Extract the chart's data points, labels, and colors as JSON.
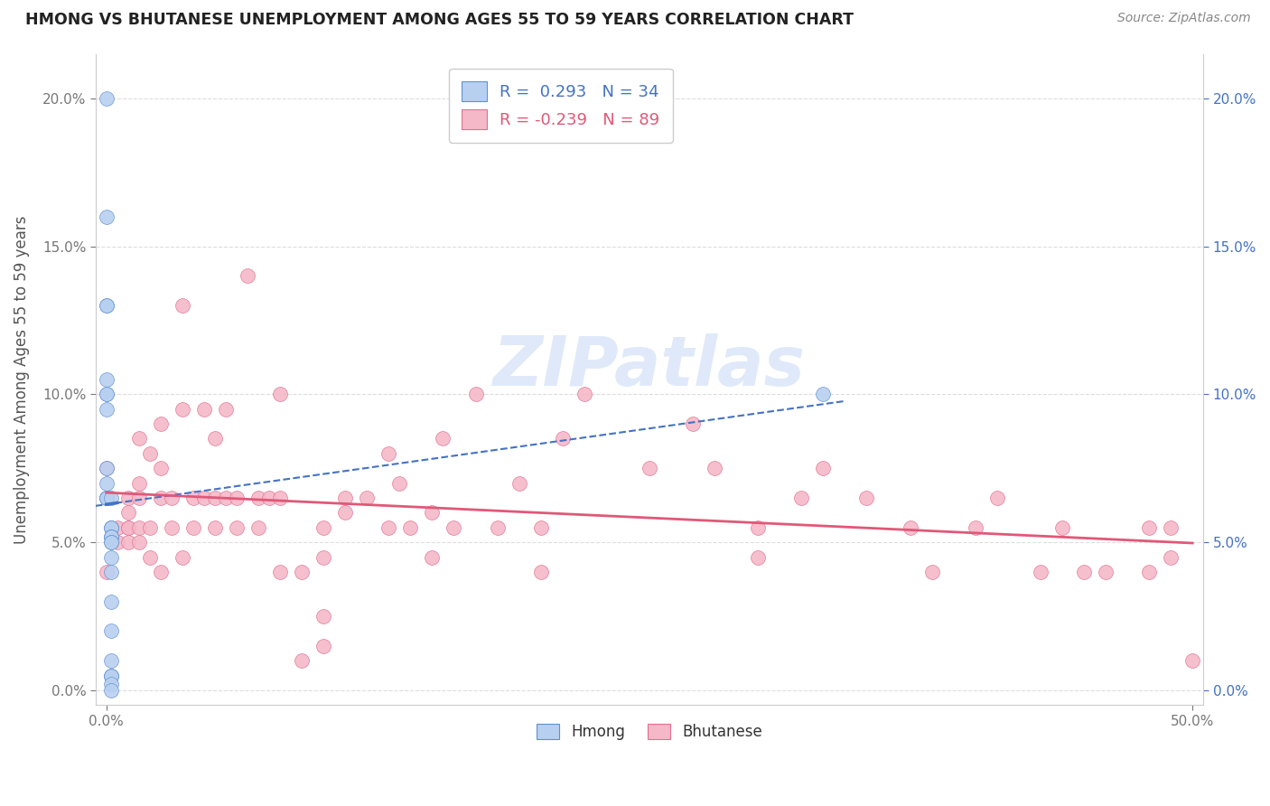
{
  "title": "HMONG VS BHUTANESE UNEMPLOYMENT AMONG AGES 55 TO 59 YEARS CORRELATION CHART",
  "source": "Source: ZipAtlas.com",
  "ylabel": "Unemployment Among Ages 55 to 59 years",
  "watermark": "ZIPatlas",
  "hmong_R": 0.293,
  "hmong_N": 34,
  "bhutanese_R": -0.239,
  "bhutanese_N": 89,
  "hmong_color": "#b8d0f0",
  "hmong_edge_color": "#6090d0",
  "hmong_line_color": "#4472c4",
  "bhutanese_color": "#f5b8c8",
  "bhutanese_edge_color": "#e07090",
  "bhutanese_line_color": "#e05878",
  "xlim": [
    -0.005,
    0.505
  ],
  "ylim": [
    -0.005,
    0.215
  ],
  "xticks": [
    0.0,
    0.5
  ],
  "xtick_labels": [
    "0.0%",
    "50.0%"
  ],
  "yticks": [
    0.0,
    0.05,
    0.1,
    0.15,
    0.2
  ],
  "ytick_labels": [
    "0.0%",
    "5.0%",
    "10.0%",
    "15.0%",
    "20.0%"
  ],
  "background_color": "#ffffff",
  "grid_color": "#dddddd",
  "hmong_x": [
    0.0,
    0.0,
    0.0,
    0.0,
    0.0,
    0.0,
    0.0,
    0.0,
    0.0,
    0.0,
    0.0,
    0.0,
    0.0,
    0.0,
    0.002,
    0.002,
    0.002,
    0.002,
    0.002,
    0.002,
    0.002,
    0.002,
    0.002,
    0.002,
    0.002,
    0.002,
    0.002,
    0.002,
    0.002,
    0.002,
    0.002,
    0.002,
    0.002,
    0.33
  ],
  "hmong_y": [
    0.2,
    0.16,
    0.13,
    0.13,
    0.105,
    0.1,
    0.1,
    0.095,
    0.075,
    0.07,
    0.065,
    0.065,
    0.065,
    0.065,
    0.065,
    0.055,
    0.055,
    0.055,
    0.052,
    0.052,
    0.052,
    0.05,
    0.05,
    0.045,
    0.04,
    0.03,
    0.02,
    0.01,
    0.005,
    0.005,
    0.005,
    0.002,
    0.0,
    0.1
  ],
  "bhutanese_x": [
    0.0,
    0.0,
    0.005,
    0.005,
    0.01,
    0.01,
    0.01,
    0.01,
    0.01,
    0.015,
    0.015,
    0.015,
    0.015,
    0.015,
    0.02,
    0.02,
    0.02,
    0.025,
    0.025,
    0.025,
    0.025,
    0.03,
    0.03,
    0.035,
    0.035,
    0.035,
    0.04,
    0.04,
    0.045,
    0.045,
    0.05,
    0.05,
    0.05,
    0.055,
    0.055,
    0.06,
    0.06,
    0.065,
    0.07,
    0.07,
    0.075,
    0.08,
    0.08,
    0.08,
    0.09,
    0.09,
    0.1,
    0.1,
    0.1,
    0.1,
    0.11,
    0.11,
    0.12,
    0.13,
    0.13,
    0.135,
    0.14,
    0.15,
    0.15,
    0.155,
    0.16,
    0.17,
    0.18,
    0.19,
    0.2,
    0.2,
    0.21,
    0.22,
    0.25,
    0.27,
    0.28,
    0.3,
    0.3,
    0.32,
    0.33,
    0.35,
    0.37,
    0.38,
    0.4,
    0.41,
    0.43,
    0.44,
    0.45,
    0.46,
    0.48,
    0.48,
    0.49,
    0.49,
    0.5
  ],
  "bhutanese_y": [
    0.075,
    0.04,
    0.055,
    0.05,
    0.065,
    0.06,
    0.055,
    0.055,
    0.05,
    0.085,
    0.07,
    0.065,
    0.055,
    0.05,
    0.08,
    0.055,
    0.045,
    0.09,
    0.075,
    0.065,
    0.04,
    0.065,
    0.055,
    0.13,
    0.095,
    0.045,
    0.065,
    0.055,
    0.095,
    0.065,
    0.085,
    0.065,
    0.055,
    0.095,
    0.065,
    0.065,
    0.055,
    0.14,
    0.065,
    0.055,
    0.065,
    0.1,
    0.065,
    0.04,
    0.04,
    0.01,
    0.055,
    0.045,
    0.025,
    0.015,
    0.065,
    0.06,
    0.065,
    0.08,
    0.055,
    0.07,
    0.055,
    0.06,
    0.045,
    0.085,
    0.055,
    0.1,
    0.055,
    0.07,
    0.055,
    0.04,
    0.085,
    0.1,
    0.075,
    0.09,
    0.075,
    0.055,
    0.045,
    0.065,
    0.075,
    0.065,
    0.055,
    0.04,
    0.055,
    0.065,
    0.04,
    0.055,
    0.04,
    0.04,
    0.055,
    0.04,
    0.055,
    0.045,
    0.01
  ]
}
